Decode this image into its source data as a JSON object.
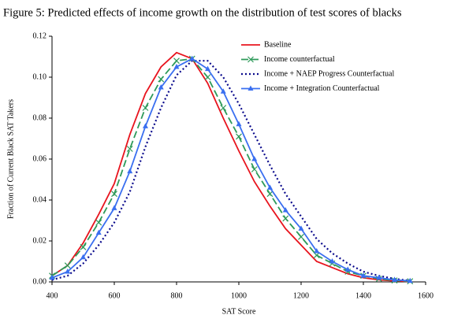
{
  "chart_data": {
    "type": "line",
    "title": "Figure 5: Predicted effects of income growth on the distribution of test scores of blacks",
    "xlabel": "SAT Score",
    "ylabel": "Fraction of Current Black SAT Takers",
    "x": [
      400,
      450,
      500,
      550,
      600,
      650,
      700,
      750,
      800,
      850,
      900,
      950,
      1000,
      1050,
      1100,
      1150,
      1200,
      1250,
      1300,
      1350,
      1400,
      1450,
      1500,
      1550
    ],
    "series": [
      {
        "name": "Baseline",
        "color": "#e8141e",
        "linestyle": "solid",
        "marker": "none",
        "values": [
          0.003,
          0.008,
          0.019,
          0.033,
          0.048,
          0.072,
          0.092,
          0.105,
          0.112,
          0.109,
          0.097,
          0.08,
          0.064,
          0.049,
          0.037,
          0.026,
          0.018,
          0.01,
          0.007,
          0.004,
          0.002,
          0.001,
          0.0005,
          0.0002
        ]
      },
      {
        "name": "Income counterfactual",
        "color": "#2e9a5a",
        "linestyle": "dashed",
        "marker": "x",
        "values": [
          0.003,
          0.008,
          0.017,
          0.029,
          0.043,
          0.065,
          0.085,
          0.099,
          0.108,
          0.109,
          0.1,
          0.085,
          0.071,
          0.055,
          0.043,
          0.031,
          0.022,
          0.013,
          0.009,
          0.005,
          0.003,
          0.0015,
          0.0007,
          0.0003
        ]
      },
      {
        "name": "Income + NAEP Progress Counterfactual",
        "color": "#0a0a8c",
        "linestyle": "dotted",
        "marker": "none",
        "values": [
          0.001,
          0.003,
          0.009,
          0.018,
          0.029,
          0.044,
          0.066,
          0.085,
          0.101,
          0.108,
          0.108,
          0.1,
          0.087,
          0.072,
          0.057,
          0.043,
          0.032,
          0.021,
          0.014,
          0.009,
          0.005,
          0.003,
          0.0015,
          0.0006
        ]
      },
      {
        "name": "Income + Integration Counterfactual",
        "color": "#3a6ff0",
        "linestyle": "solid",
        "marker": "triangle",
        "values": [
          0.002,
          0.005,
          0.012,
          0.024,
          0.036,
          0.054,
          0.076,
          0.095,
          0.105,
          0.109,
          0.104,
          0.093,
          0.077,
          0.06,
          0.046,
          0.035,
          0.026,
          0.015,
          0.01,
          0.006,
          0.003,
          0.002,
          0.001,
          0.0005
        ]
      }
    ],
    "xlim": [
      400,
      1600
    ],
    "xticks": [
      400,
      600,
      800,
      1000,
      1200,
      1400,
      1600
    ],
    "ylim": [
      0,
      0.12
    ],
    "yticks": [
      {
        "value": 0,
        "label": "0.00"
      },
      {
        "value": 0.02,
        "label": "0.02"
      },
      {
        "value": 0.04,
        "label": "0.04"
      },
      {
        "value": 0.06,
        "label": "0.06"
      },
      {
        "value": 0.08,
        "label": "0.08"
      },
      {
        "value": 0.1,
        "label": "0.10"
      },
      {
        "value": 0.12,
        "label": "0.12"
      }
    ]
  }
}
